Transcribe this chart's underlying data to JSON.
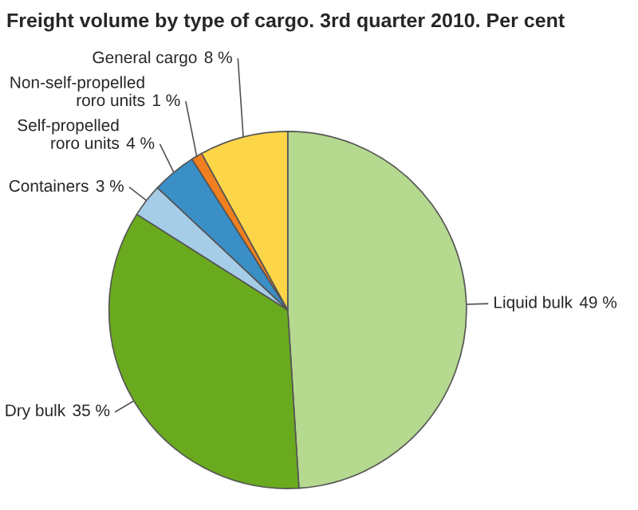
{
  "chart_data": {
    "type": "pie",
    "title": "Freight volume by type of cargo. 3rd quarter 2010. Per cent",
    "categories": [
      "Liquid bulk",
      "Dry bulk",
      "Containers",
      "Self-propelled\nroro units",
      "Non-self-propelled\nroro units",
      "General cargo"
    ],
    "values": [
      49,
      35,
      3,
      4,
      1,
      8
    ],
    "colors": [
      "#b5d98f",
      "#6aaa1e",
      "#a6cde8",
      "#3a8fc7",
      "#f07f1f",
      "#fdd549"
    ],
    "value_labels": [
      "49 %",
      "35 %",
      "3 %",
      "4 %",
      "1 %",
      "8 %"
    ]
  }
}
